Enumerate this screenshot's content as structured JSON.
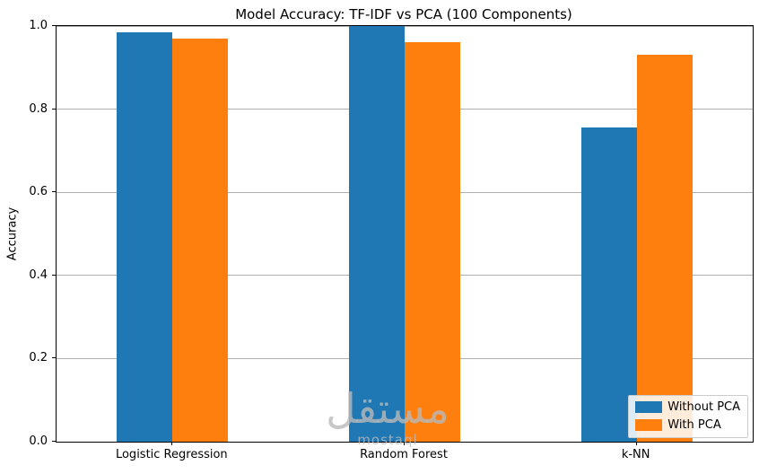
{
  "chart_data": {
    "type": "bar",
    "title": "Model Accuracy: TF-IDF vs PCA (100 Components)",
    "categories": [
      "Logistic Regression",
      "Random Forest",
      "k-NN"
    ],
    "series": [
      {
        "name": "Without PCA",
        "color": "#1f77b4",
        "values": [
          0.985,
          1.0,
          0.755
        ]
      },
      {
        "name": "With PCA",
        "color": "#ff7f0e",
        "values": [
          0.97,
          0.962,
          0.93
        ]
      }
    ],
    "xlabel": "",
    "ylabel": "Accuracy",
    "ylim": [
      0.0,
      1.0
    ],
    "yticks": [
      0.0,
      0.2,
      0.4,
      0.6,
      0.8,
      1.0
    ],
    "grid": true,
    "legend_position": "lower right"
  },
  "watermark": {
    "arabic": "مستقل",
    "latin": "mostaql"
  }
}
